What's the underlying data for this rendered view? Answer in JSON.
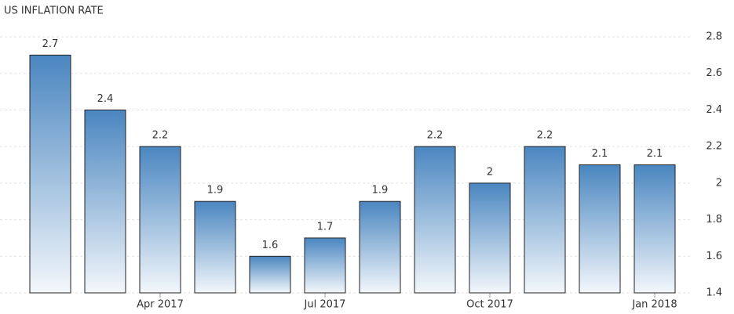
{
  "chart_data": {
    "type": "bar",
    "title": "US INFLATION RATE",
    "categories": [
      null,
      null,
      "Apr 2017",
      null,
      null,
      "Jul 2017",
      null,
      null,
      "Oct 2017",
      null,
      null,
      "Jan 2018"
    ],
    "values": [
      2.7,
      2.4,
      2.2,
      1.9,
      1.6,
      1.7,
      1.9,
      2.2,
      2,
      2.2,
      2.1,
      2.1
    ],
    "color": "#4a86c0",
    "ylim": [
      1.4,
      2.8
    ],
    "yticks": [
      1.4,
      1.6,
      1.8,
      2,
      2.2,
      2.4,
      2.6,
      2.8
    ],
    "grid": true
  }
}
